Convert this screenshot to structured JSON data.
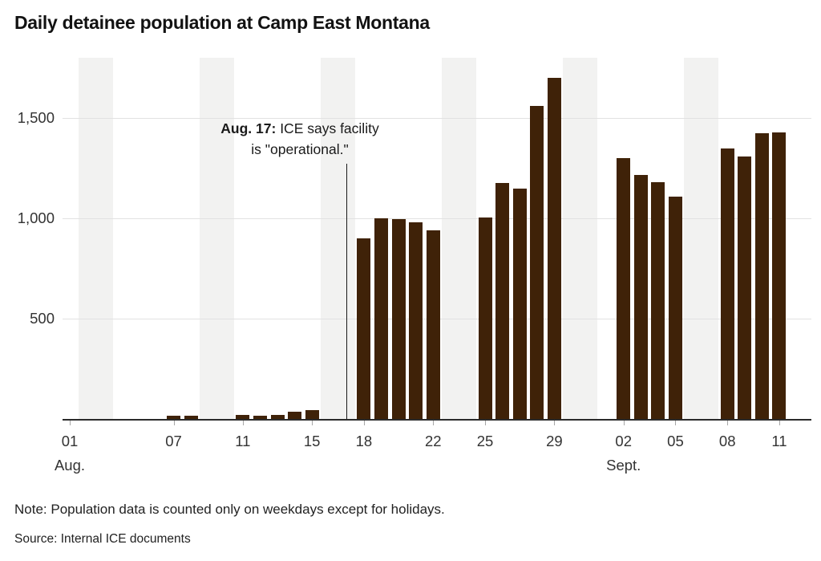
{
  "page": {
    "title": "Daily detainee population at Camp East Montana",
    "note": "Note: Population data is counted only on weekdays except for holidays.",
    "source": "Source: Internal ICE documents"
  },
  "annotation": {
    "date_label": "Aug. 17:",
    "text_line1": " ICE says facility",
    "text_line2": "is \"operational.\"",
    "day_index": 16
  },
  "colors": {
    "bar": "#3F2208",
    "weekend_band": "#F2F2F1",
    "gridline": "#E2E2E2",
    "axis_line": "#2B2B2B",
    "tick": "#A6A6A6",
    "text": "#1A1A1A"
  },
  "chart_data": {
    "type": "bar",
    "title": "Daily detainee population at Camp East Montana",
    "xlabel": "",
    "ylabel": "",
    "ylim": [
      0,
      1800
    ],
    "yticks": [
      500,
      1000,
      1500
    ],
    "ytick_labels": [
      "500",
      "1,000",
      "1,500"
    ],
    "grid": true,
    "legend": "none",
    "x_tick_labels": [
      {
        "day": 0,
        "label": "01"
      },
      {
        "day": 6,
        "label": "07"
      },
      {
        "day": 10,
        "label": "11"
      },
      {
        "day": 14,
        "label": "15"
      },
      {
        "day": 17,
        "label": "18"
      },
      {
        "day": 21,
        "label": "22"
      },
      {
        "day": 24,
        "label": "25"
      },
      {
        "day": 28,
        "label": "29"
      },
      {
        "day": 32,
        "label": "02"
      },
      {
        "day": 35,
        "label": "05"
      },
      {
        "day": 38,
        "label": "08"
      },
      {
        "day": 41,
        "label": "11"
      }
    ],
    "month_labels": [
      {
        "day": 0,
        "label": "Aug."
      },
      {
        "day": 32,
        "label": "Sept."
      }
    ],
    "weekend_bands_start_day": [
      1,
      8,
      15,
      22,
      29,
      36
    ],
    "points": [
      {
        "date": "Aug. 7",
        "day": 6,
        "value": 15
      },
      {
        "date": "Aug. 8",
        "day": 7,
        "value": 15
      },
      {
        "date": "Aug. 11",
        "day": 10,
        "value": 20
      },
      {
        "date": "Aug. 12",
        "day": 11,
        "value": 15
      },
      {
        "date": "Aug. 13",
        "day": 12,
        "value": 20
      },
      {
        "date": "Aug. 14",
        "day": 13,
        "value": 35
      },
      {
        "date": "Aug. 15",
        "day": 14,
        "value": 45
      },
      {
        "date": "Aug. 18",
        "day": 17,
        "value": 900
      },
      {
        "date": "Aug. 19",
        "day": 18,
        "value": 1000
      },
      {
        "date": "Aug. 20",
        "day": 19,
        "value": 995
      },
      {
        "date": "Aug. 21",
        "day": 20,
        "value": 980
      },
      {
        "date": "Aug. 22",
        "day": 21,
        "value": 940
      },
      {
        "date": "Aug. 25",
        "day": 24,
        "value": 1005
      },
      {
        "date": "Aug. 26",
        "day": 25,
        "value": 1175
      },
      {
        "date": "Aug. 27",
        "day": 26,
        "value": 1150
      },
      {
        "date": "Aug. 28",
        "day": 27,
        "value": 1560
      },
      {
        "date": "Aug. 29",
        "day": 28,
        "value": 1700
      },
      {
        "date": "Sept. 2",
        "day": 32,
        "value": 1300
      },
      {
        "date": "Sept. 3",
        "day": 33,
        "value": 1215
      },
      {
        "date": "Sept. 4",
        "day": 34,
        "value": 1180
      },
      {
        "date": "Sept. 5",
        "day": 35,
        "value": 1110
      },
      {
        "date": "Sept. 8",
        "day": 38,
        "value": 1350
      },
      {
        "date": "Sept. 9",
        "day": 39,
        "value": 1310
      },
      {
        "date": "Sept. 10",
        "day": 40,
        "value": 1425
      },
      {
        "date": "Sept. 11",
        "day": 41,
        "value": 1430
      }
    ]
  }
}
